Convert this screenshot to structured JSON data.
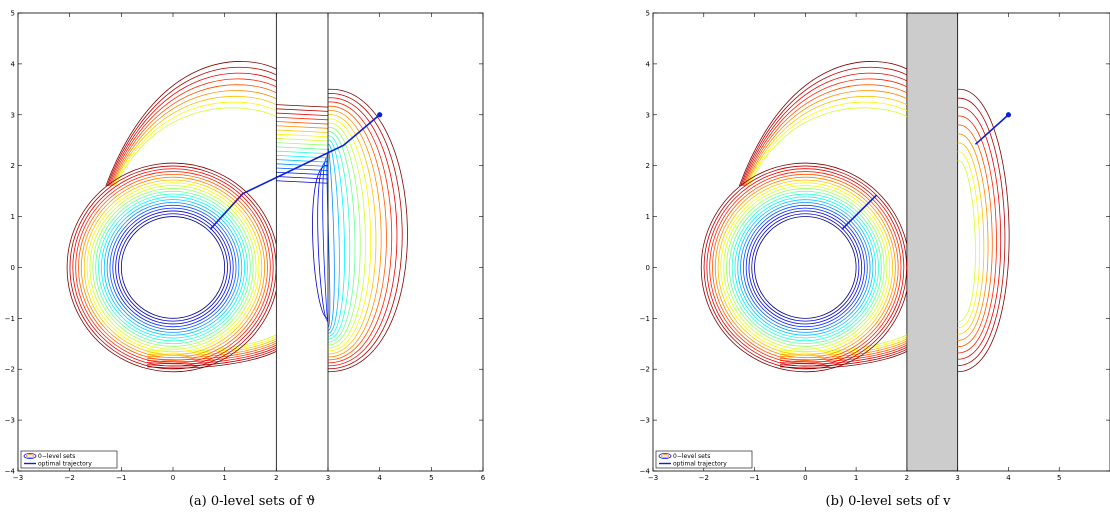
{
  "chart_data": [
    {
      "type": "contour",
      "caption": "(a)  0-level sets of ϑ",
      "xlim": [
        -3,
        6
      ],
      "ylim": [
        -4,
        5
      ],
      "xticks": [
        "−3",
        "−2",
        "−1",
        "0",
        "1",
        "2",
        "3",
        "4",
        "5",
        "6"
      ],
      "yticks": [
        "−4",
        "−3",
        "−2",
        "−1",
        "0",
        "1",
        "2",
        "3",
        "4",
        "5"
      ],
      "obstacle": {
        "x": [
          2,
          3
        ],
        "style": "outline"
      },
      "inner_set": {
        "center": [
          0,
          0
        ],
        "radius": 1
      },
      "num_level_sets": 20,
      "trajectory": [
        [
          0.72,
          0.75
        ],
        [
          1.35,
          1.45
        ],
        [
          3.3,
          2.4
        ],
        [
          4.0,
          3.0
        ]
      ],
      "target_point": [
        4.0,
        3.0
      ],
      "legend": {
        "position": "bottom-left",
        "entries": [
          "0−level sets",
          "optimal trajectory"
        ]
      }
    },
    {
      "type": "contour",
      "caption": "(b)  0-level sets of v",
      "xlim": [
        -3,
        6
      ],
      "ylim": [
        -4,
        5
      ],
      "xticks": [
        "−3",
        "−2",
        "−1",
        "0",
        "1",
        "2",
        "3",
        "4",
        "5"
      ],
      "yticks": [
        "−4",
        "−3",
        "−2",
        "−1",
        "0",
        "1",
        "2",
        "3",
        "4",
        "5"
      ],
      "obstacle": {
        "x": [
          2,
          3
        ],
        "style": "filled"
      },
      "inner_set": {
        "center": [
          0,
          0
        ],
        "radius": 1
      },
      "num_level_sets": 20,
      "trajectory_segments": [
        [
          [
            0.72,
            0.75
          ],
          [
            1.4,
            1.42
          ]
        ],
        [
          [
            3.35,
            2.42
          ],
          [
            4.0,
            3.0
          ]
        ]
      ],
      "target_point": [
        4.0,
        3.0
      ],
      "legend": {
        "position": "bottom-left",
        "entries": [
          "0−level sets",
          "optimal trajectory"
        ]
      }
    }
  ],
  "colors": {
    "obstacle_fill": "#cccccc",
    "trajectory": "#0a1fd6",
    "colormap": [
      "#00008f",
      "#0000ff",
      "#0080ff",
      "#00ffff",
      "#80ff80",
      "#ffff00",
      "#ff8000",
      "#ff0000",
      "#800000"
    ]
  }
}
